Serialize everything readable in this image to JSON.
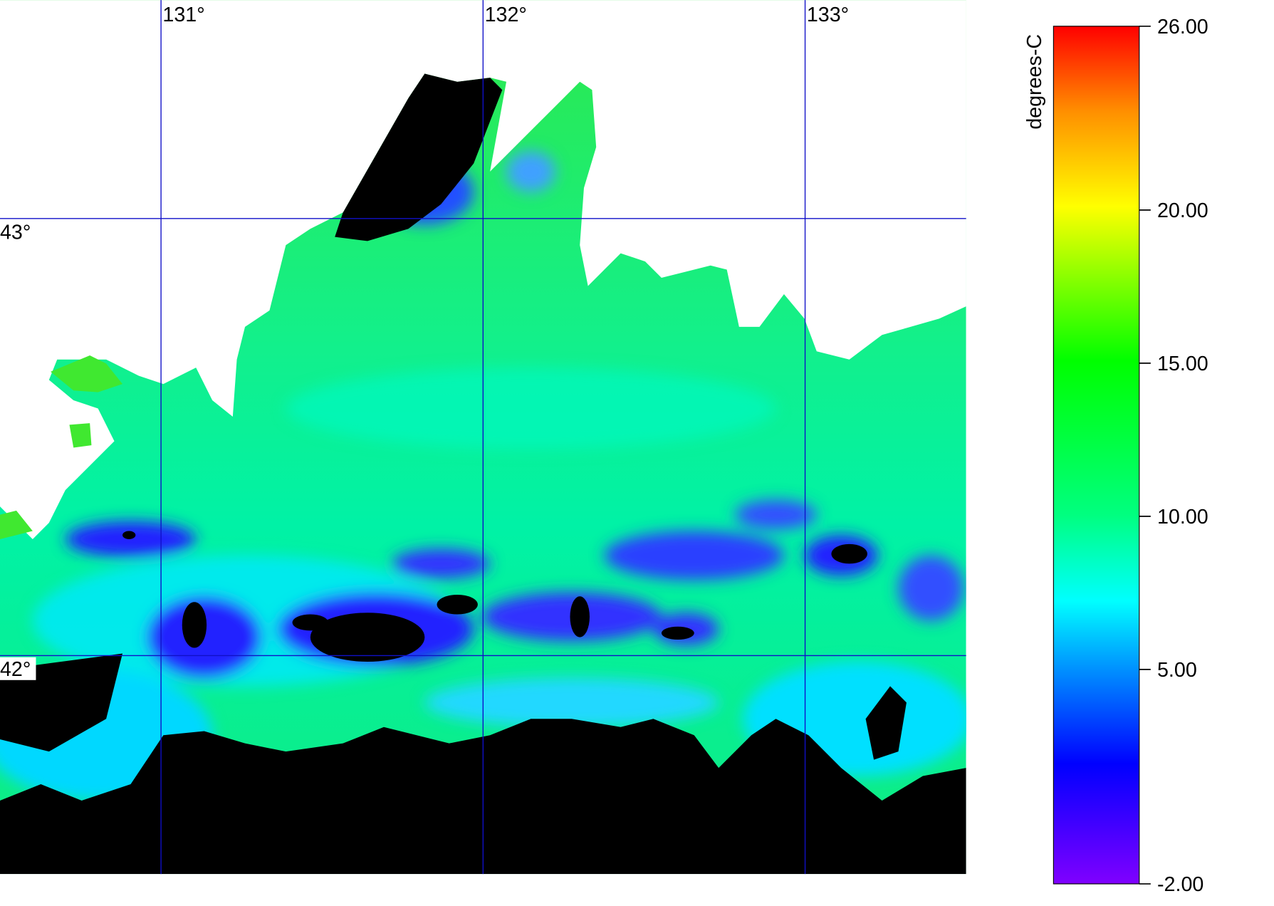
{
  "chart_data": {
    "type": "map",
    "xlim": [
      130.5,
      133.5
    ],
    "ylim": [
      41.5,
      43.5
    ],
    "xticks": [
      {
        "value": 131,
        "label": "131°"
      },
      {
        "value": 132,
        "label": "132°"
      },
      {
        "value": 133,
        "label": "133°"
      }
    ],
    "yticks": [
      {
        "value": 42,
        "label": "42°"
      },
      {
        "value": 43,
        "label": "43°"
      }
    ],
    "grid": true,
    "colorbar": {
      "label": "degrees-C",
      "lim": [
        -2,
        26
      ],
      "ticks": [
        {
          "value": -2,
          "label": "-2.00"
        },
        {
          "value": 5,
          "label": "5.00"
        },
        {
          "value": 10,
          "label": "10.00"
        },
        {
          "value": 15,
          "label": "15.00"
        },
        {
          "value": 20,
          "label": "20.00"
        },
        {
          "value": 26,
          "label": "26.00"
        }
      ]
    }
  }
}
